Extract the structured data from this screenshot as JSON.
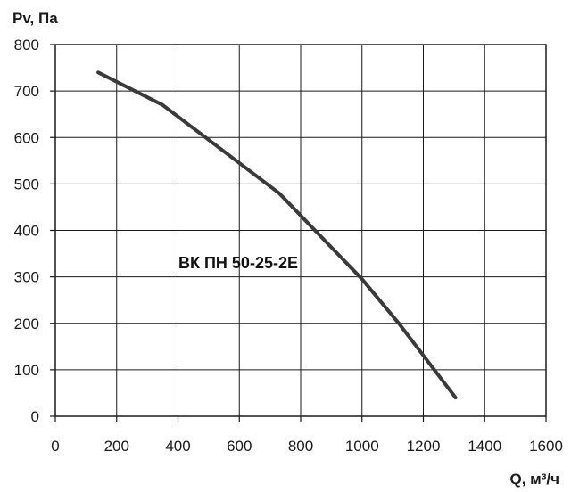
{
  "chart_data": {
    "type": "line",
    "ylabel": "Pv, Па",
    "xlabel": "Q, м³/ч",
    "xlim": [
      0,
      1600
    ],
    "ylim": [
      0,
      800
    ],
    "xticks": [
      0,
      200,
      400,
      600,
      800,
      1000,
      1200,
      1400,
      1600
    ],
    "yticks": [
      0,
      100,
      200,
      300,
      400,
      500,
      600,
      700,
      800
    ],
    "grid": true,
    "annotation": "ВК ПН 50-25-2Е",
    "series": [
      {
        "x": [
          140,
          350,
          730,
          1000,
          1120,
          1305
        ],
        "y": [
          740,
          670,
          480,
          295,
          200,
          40
        ],
        "color": "#3a3a3a"
      }
    ]
  }
}
